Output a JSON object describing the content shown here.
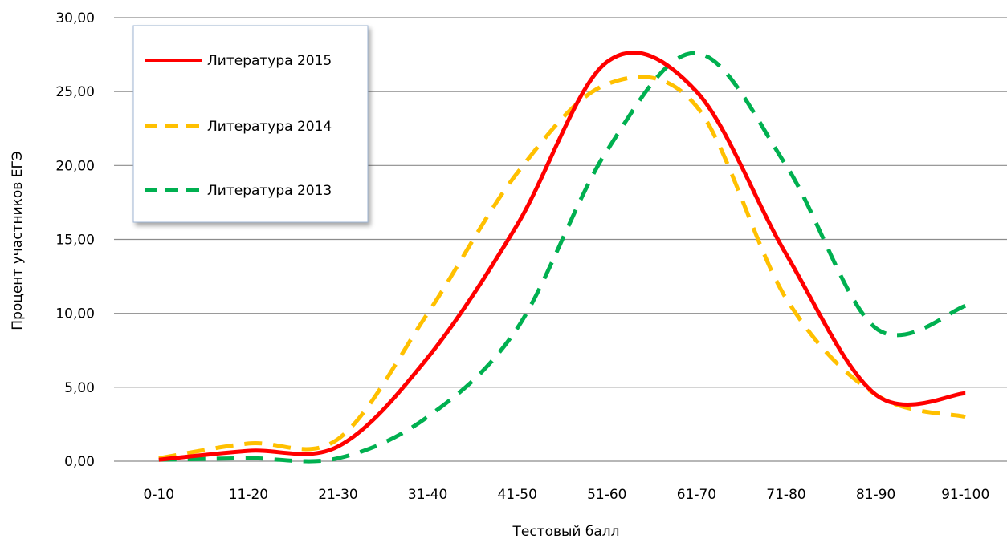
{
  "chart_data": {
    "type": "line",
    "title": "",
    "xlabel": "Тестовый балл",
    "ylabel": "Процент участников ЕГЭ",
    "ylim": [
      0,
      30
    ],
    "y_ticks": [
      "0,00",
      "5,00",
      "10,00",
      "15,00",
      "20,00",
      "25,00",
      "30,00"
    ],
    "y_tick_values": [
      0,
      5,
      10,
      15,
      20,
      25,
      30
    ],
    "categories": [
      "0-10",
      "11-20",
      "21-30",
      "31-40",
      "41-50",
      "51-60",
      "61-70",
      "71-80",
      "81-90",
      "91-100"
    ],
    "grid": true,
    "legend_position": "top-left",
    "series": [
      {
        "name": "Литература 2015",
        "values": [
          0.1,
          0.7,
          1.0,
          7.0,
          16.0,
          27.0,
          25.0,
          14.0,
          4.5,
          4.6
        ],
        "color": "#ff0000",
        "style": "solid"
      },
      {
        "name": "Литература 2014",
        "values": [
          0.2,
          1.2,
          1.5,
          10.0,
          19.5,
          25.5,
          24.0,
          11.0,
          4.5,
          3.0
        ],
        "color": "#ffc000",
        "style": "dashed"
      },
      {
        "name": "Литература 2013",
        "values": [
          0.1,
          0.2,
          0.2,
          3.0,
          9.0,
          21.0,
          27.6,
          20.0,
          9.0,
          10.5
        ],
        "color": "#00b050",
        "style": "dashed"
      }
    ]
  }
}
